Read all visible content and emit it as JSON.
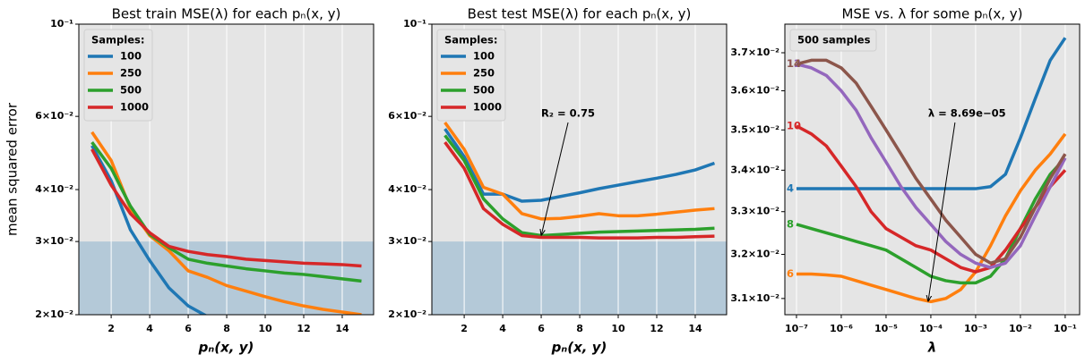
{
  "chart_data": [
    {
      "type": "line",
      "title": "Best train MSE(λ) for each pₙ(x, y)",
      "x_label": "pₙ(x, y)",
      "y_label": "mean squared error",
      "x": [
        1,
        2,
        3,
        4,
        5,
        6,
        7,
        8,
        9,
        10,
        11,
        12,
        13,
        14,
        15
      ],
      "series": [
        {
          "name": "100",
          "color": "#1f77b4",
          "values": [
            0.051,
            0.042,
            0.032,
            0.027,
            0.0232,
            0.021,
            0.0198,
            0.0188,
            null,
            null,
            null,
            null,
            null,
            null,
            null
          ]
        },
        {
          "name": "250",
          "color": "#ff7f0e",
          "values": [
            0.055,
            0.047,
            0.036,
            0.031,
            0.0285,
            0.0255,
            0.0246,
            0.0235,
            0.0228,
            0.0221,
            0.0215,
            0.021,
            0.0206,
            0.0203,
            0.02
          ]
        },
        {
          "name": "500",
          "color": "#2ca02c",
          "values": [
            0.052,
            0.045,
            0.0365,
            0.0312,
            0.029,
            0.0272,
            0.0266,
            0.0262,
            0.0258,
            0.0255,
            0.0252,
            0.025,
            0.0247,
            0.0244,
            0.0241
          ]
        },
        {
          "name": "1000",
          "color": "#d62728",
          "values": [
            0.05,
            0.041,
            0.035,
            0.0315,
            0.0292,
            0.0284,
            0.0279,
            0.0276,
            0.0272,
            0.027,
            0.0268,
            0.0266,
            0.0265,
            0.0264,
            0.0262
          ]
        }
      ],
      "xlim": [
        0.32,
        15.63
      ],
      "xticks": [
        2,
        4,
        6,
        8,
        10,
        12,
        14
      ],
      "y_scale": "log",
      "ylim": [
        0.02,
        0.1
      ],
      "yticks": [
        {
          "value": 0.02,
          "label": "2×10⁻²"
        },
        {
          "value": 0.03,
          "label": "3×10⁻²"
        },
        {
          "value": 0.04,
          "label": "4×10⁻²"
        },
        {
          "value": 0.06,
          "label": "6×10⁻²"
        },
        {
          "value": 0.1,
          "label": "10⁻¹"
        }
      ],
      "grid": "x",
      "legend": "upper left",
      "legend_title": "Samples:",
      "shade_below": 0.03,
      "shade_color": "#b4c9d8"
    },
    {
      "type": "line",
      "title": "Best test MSE(λ) for each pₙ(x, y)",
      "x_label": "pₙ(x, y)",
      "x": [
        1,
        2,
        3,
        4,
        5,
        6,
        7,
        8,
        9,
        10,
        11,
        12,
        13,
        14,
        15
      ],
      "series": [
        {
          "name": "100",
          "color": "#1f77b4",
          "values": [
            0.056,
            0.048,
            0.039,
            0.039,
            0.0375,
            0.0377,
            0.0385,
            0.0393,
            0.0402,
            0.041,
            0.0418,
            0.0426,
            0.0435,
            0.0446,
            0.0463
          ]
        },
        {
          "name": "250",
          "color": "#ff7f0e",
          "values": [
            0.058,
            0.05,
            0.0405,
            0.039,
            0.035,
            0.034,
            0.0341,
            0.0345,
            0.035,
            0.0346,
            0.0346,
            0.0349,
            0.0353,
            0.0357,
            0.036
          ]
        },
        {
          "name": "500",
          "color": "#2ca02c",
          "values": [
            0.054,
            0.047,
            0.038,
            0.034,
            0.0315,
            0.031,
            0.0312,
            0.0314,
            0.0316,
            0.0317,
            0.0318,
            0.0319,
            0.032,
            0.0321,
            0.0323
          ]
        },
        {
          "name": "1000",
          "color": "#d62728",
          "values": [
            0.052,
            0.045,
            0.036,
            0.033,
            0.031,
            0.0307,
            0.0307,
            0.0307,
            0.0306,
            0.0306,
            0.0306,
            0.0307,
            0.0307,
            0.0308,
            0.0309
          ]
        }
      ],
      "xlim": [
        0.32,
        15.63
      ],
      "xticks": [
        2,
        4,
        6,
        8,
        10,
        12,
        14
      ],
      "y_scale": "log",
      "ylim": [
        0.02,
        0.1
      ],
      "yticks": [
        {
          "value": 0.02,
          "label": "2×10⁻²"
        },
        {
          "value": 0.03,
          "label": "3×10⁻²"
        },
        {
          "value": 0.04,
          "label": "4×10⁻²"
        },
        {
          "value": 0.06,
          "label": "6×10⁻²"
        },
        {
          "value": 0.1,
          "label": "10⁻¹"
        }
      ],
      "grid": "x",
      "legend": "upper left",
      "legend_title": "Samples:",
      "shade_below": 0.03,
      "shade_color": "#b4c9d8",
      "annotations": [
        {
          "text": "R₂ = 0.75",
          "x": 6,
          "y": 0.031
        }
      ]
    },
    {
      "type": "line",
      "title": "MSE vs. λ for some pₙ(x, y)",
      "x_label": "λ",
      "x": [
        1e-07,
        2.15e-07,
        4.64e-07,
        1e-06,
        2.15e-06,
        4.64e-06,
        1e-05,
        2.15e-05,
        4.64e-05,
        0.0001,
        0.000215,
        0.000464,
        0.001,
        0.00215,
        0.00464,
        0.01,
        0.0215,
        0.0464,
        0.1
      ],
      "series": [
        {
          "name": "4",
          "color": "#1f77b4",
          "values": [
            0.03355,
            0.03355,
            0.03355,
            0.03355,
            0.03355,
            0.03355,
            0.03355,
            0.03355,
            0.03355,
            0.03355,
            0.03355,
            0.03355,
            0.03355,
            0.0336,
            0.0339,
            0.0348,
            0.0358,
            0.0368,
            0.0374
          ]
        },
        {
          "name": "6",
          "color": "#ff7f0e",
          "values": [
            0.03155,
            0.03155,
            0.03153,
            0.0315,
            0.0314,
            0.0313,
            0.0312,
            0.0311,
            0.031,
            0.03093,
            0.031,
            0.0312,
            0.0316,
            0.0322,
            0.0329,
            0.0335,
            0.034,
            0.0344,
            0.0349
          ]
        },
        {
          "name": "8",
          "color": "#2ca02c",
          "values": [
            0.0327,
            0.0326,
            0.0325,
            0.0324,
            0.0323,
            0.0322,
            0.0321,
            0.0319,
            0.0317,
            0.0315,
            0.0314,
            0.03135,
            0.03135,
            0.0315,
            0.0319,
            0.0326,
            0.0333,
            0.0339,
            0.0343
          ]
        },
        {
          "name": "10",
          "color": "#d62728",
          "values": [
            0.0351,
            0.0349,
            0.0346,
            0.0341,
            0.0336,
            0.033,
            0.0326,
            0.0324,
            0.0322,
            0.0321,
            0.0319,
            0.0317,
            0.0316,
            0.0317,
            0.0321,
            0.0326,
            0.0331,
            0.0336,
            0.034
          ]
        },
        {
          "name": "12",
          "color": "#9467bd",
          "values": [
            0.0367,
            0.0366,
            0.0364,
            0.036,
            0.0355,
            0.0348,
            0.0342,
            0.0336,
            0.0331,
            0.0327,
            0.0323,
            0.032,
            0.0318,
            0.0317,
            0.0318,
            0.0322,
            0.0329,
            0.0336,
            0.0343
          ]
        },
        {
          "name": "14",
          "color": "#8c564b",
          "values": [
            0.0367,
            0.0368,
            0.0368,
            0.0366,
            0.0362,
            0.0356,
            0.035,
            0.0344,
            0.0338,
            0.0333,
            0.0328,
            0.0324,
            0.032,
            0.0318,
            0.0319,
            0.0324,
            0.0331,
            0.0338,
            0.0344
          ]
        }
      ],
      "x_scale": "log",
      "xlim": [
        5.5e-08,
        0.21
      ],
      "xticks": [
        {
          "value": 1e-07,
          "label": "10⁻⁷"
        },
        {
          "value": 1e-06,
          "label": "10⁻⁶"
        },
        {
          "value": 1e-05,
          "label": "10⁻⁵"
        },
        {
          "value": 0.0001,
          "label": "10⁻⁴"
        },
        {
          "value": 0.001,
          "label": "10⁻³"
        },
        {
          "value": 0.01,
          "label": "10⁻²"
        },
        {
          "value": 0.1,
          "label": "10⁻¹"
        }
      ],
      "y_scale": "log",
      "ylim": [
        0.03064,
        0.03777
      ],
      "yticks": [
        {
          "value": 0.031,
          "label": "3.1×10⁻²"
        },
        {
          "value": 0.032,
          "label": "3.2×10⁻²"
        },
        {
          "value": 0.033,
          "label": "3.3×10⁻²"
        },
        {
          "value": 0.034,
          "label": "3.4×10⁻²"
        },
        {
          "value": 0.035,
          "label": "3.5×10⁻²"
        },
        {
          "value": 0.036,
          "label": "3.6×10⁻²"
        },
        {
          "value": 0.037,
          "label": "3.7×10⁻²"
        }
      ],
      "grid": "x",
      "legend": "upper left",
      "legend_title": "500 samples",
      "series_labels": "inline",
      "annotations": [
        {
          "text": "λ = 8.69e−05",
          "x": 8.69e-05,
          "y": 0.03093
        }
      ]
    }
  ]
}
